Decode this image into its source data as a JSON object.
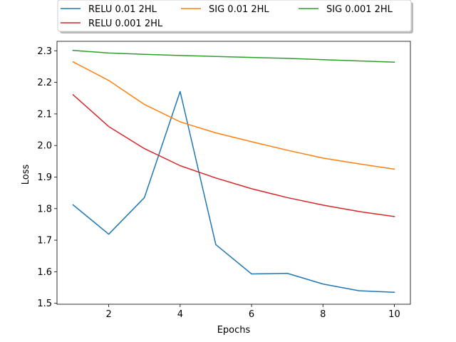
{
  "chart_data": {
    "type": "line",
    "xlabel": "Epochs",
    "ylabel": "Loss",
    "x": [
      1,
      2,
      3,
      4,
      5,
      6,
      7,
      8,
      9,
      10
    ],
    "xlim": [
      0.55,
      10.45
    ],
    "ylim": [
      1.497,
      2.33
    ],
    "xticks": [
      2,
      4,
      6,
      8,
      10
    ],
    "yticks": [
      1.5,
      1.6,
      1.7,
      1.8,
      1.9,
      2.0,
      2.1,
      2.2,
      2.3
    ],
    "grid": false,
    "legend_position": "top-center",
    "series": [
      {
        "name": "RELU 0.01 2HL",
        "color": "#1f77b4",
        "values": [
          1.812,
          1.719,
          1.835,
          2.171,
          1.686,
          1.593,
          1.595,
          1.561,
          1.54,
          1.535
        ]
      },
      {
        "name": "SIG 0.01 2HL",
        "color": "#ff7f0e",
        "values": [
          2.265,
          2.206,
          2.13,
          2.075,
          2.04,
          2.012,
          1.985,
          1.96,
          1.942,
          1.925
        ]
      },
      {
        "name": "SIG 0.001 2HL",
        "color": "#2ca02c",
        "values": [
          2.301,
          2.293,
          2.289,
          2.285,
          2.282,
          2.279,
          2.276,
          2.272,
          2.268,
          2.264
        ]
      },
      {
        "name": "RELU 0.001 2HL",
        "color": "#d62728",
        "values": [
          2.161,
          2.06,
          1.99,
          1.936,
          1.897,
          1.863,
          1.835,
          1.811,
          1.791,
          1.775
        ]
      }
    ]
  }
}
